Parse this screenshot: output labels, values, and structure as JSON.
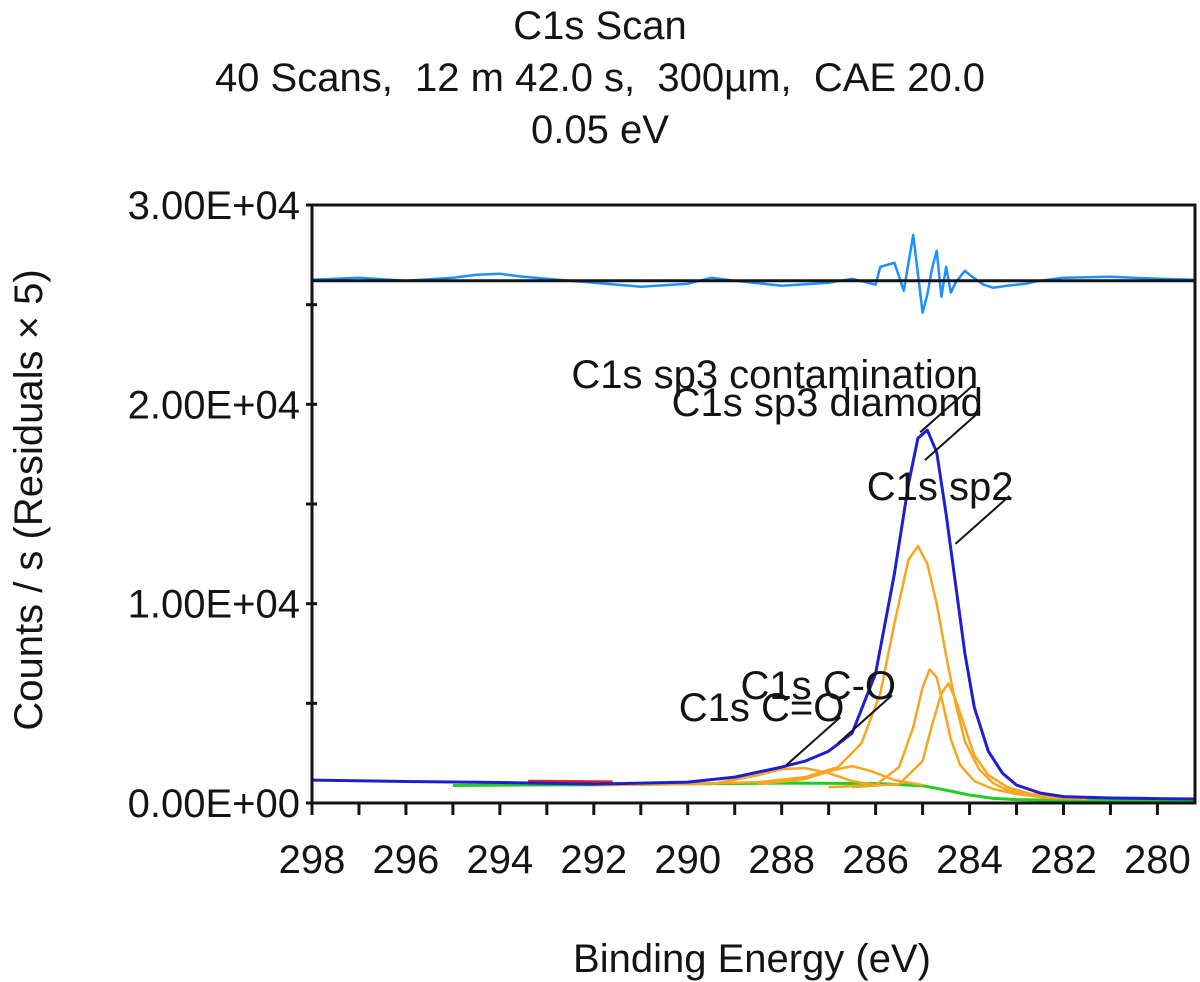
{
  "title": {
    "line1": "C1s Scan",
    "line2": "40 Scans,  12 m 42.0 s,  300µm,  CAE 20.0",
    "line3": "0.05 eV"
  },
  "chart_data": {
    "type": "line",
    "title": "C1s Scan",
    "subtitle": "40 Scans,  12 m 42.0 s,  300µm,  CAE 20.0 / 0.05 eV",
    "xlabel": "Binding Energy (eV)",
    "ylabel": "Counts / s  (Residuals × 5)",
    "xlim": [
      298,
      279.2
    ],
    "x_reversed": true,
    "ylim": [
      0,
      30000
    ],
    "yticks": [
      0,
      10000,
      20000,
      30000
    ],
    "ytick_labels": [
      "0.00E+00",
      "1.00E+04",
      "2.00E+04",
      "3.00E+04"
    ],
    "xticks": [
      298,
      296,
      294,
      292,
      290,
      288,
      286,
      284,
      282,
      280
    ],
    "xtick_labels": [
      "298",
      "296",
      "294",
      "292",
      "290",
      "288",
      "286",
      "284",
      "282",
      "280"
    ],
    "grid": false,
    "residual_baseline": 26200,
    "colors": {
      "envelope": "#1f1fd0",
      "components": "#f5a623",
      "background": "#22cc22",
      "background_region": "#dd2222",
      "residuals": "#1e90ff",
      "frame": "#141414"
    },
    "series": [
      {
        "role": "envelope",
        "x": [
          298,
          296,
          294,
          292,
          290,
          289,
          288,
          287.5,
          287,
          286.5,
          286,
          285.6,
          285.3,
          285.1,
          284.9,
          284.7,
          284.5,
          284.3,
          284.1,
          283.9,
          283.6,
          283.3,
          283,
          282.5,
          282,
          281,
          280,
          279.2
        ],
        "y": [
          1150,
          1080,
          1030,
          950,
          1050,
          1300,
          1800,
          2100,
          2600,
          3500,
          6500,
          11500,
          16000,
          18300,
          18700,
          17600,
          14500,
          11000,
          7500,
          4800,
          2600,
          1500,
          900,
          500,
          320,
          250,
          220,
          200
        ]
      },
      {
        "role": "component",
        "x": [
          292,
          290,
          288.5,
          287.5,
          286.8,
          286.3,
          285.9,
          285.6,
          285.3,
          285.1,
          284.9,
          284.7,
          284.5,
          284.3,
          284.1,
          283.8,
          283.5,
          283.2,
          282.8,
          282.3,
          281.5
        ],
        "y": [
          900,
          950,
          1050,
          1300,
          1800,
          3000,
          5500,
          9000,
          12200,
          12900,
          12000,
          10000,
          7400,
          5000,
          3100,
          1700,
          1000,
          650,
          420,
          250,
          200
        ]
      },
      {
        "role": "component",
        "x": [
          287,
          286,
          285.5,
          285.2,
          285,
          284.85,
          284.7,
          284.55,
          284.4,
          284.2,
          283.9,
          283.5,
          283,
          282.3
        ],
        "y": [
          800,
          900,
          1800,
          3800,
          5800,
          6700,
          6300,
          4800,
          3200,
          1900,
          1100,
          700,
          450,
          250
        ]
      },
      {
        "role": "component",
        "x": [
          286.5,
          285.5,
          285,
          284.8,
          284.6,
          284.45,
          284.3,
          284.1,
          283.9,
          283.6,
          283.2,
          282.7,
          282
        ],
        "y": [
          800,
          950,
          2100,
          3900,
          5500,
          6000,
          5200,
          3800,
          2400,
          1400,
          800,
          450,
          250
        ]
      },
      {
        "role": "component",
        "x": [
          289.5,
          288.5,
          288,
          287.5,
          287,
          286.5,
          286
        ],
        "y": [
          950,
          1400,
          1700,
          1750,
          1500,
          1100,
          900
        ]
      },
      {
        "role": "component",
        "x": [
          288.5,
          287.5,
          286.9,
          286.5,
          286.1,
          285.6,
          285
        ],
        "y": [
          950,
          1200,
          1650,
          1850,
          1600,
          1150,
          900
        ]
      },
      {
        "role": "background",
        "x": [
          295,
          292,
          290,
          288,
          286,
          285,
          284.5,
          284,
          283.5,
          283,
          282.5,
          282,
          281,
          280,
          279.2
        ],
        "y": [
          880,
          920,
          960,
          1000,
          980,
          870,
          640,
          400,
          230,
          170,
          150,
          130,
          120,
          110,
          100
        ]
      },
      {
        "role": "background_region",
        "x": [
          293.4,
          291.6
        ],
        "y": [
          1090,
          1060
        ]
      }
    ],
    "residuals": {
      "x": [
        298,
        297,
        296,
        295,
        294.5,
        294,
        293.5,
        293,
        292,
        291,
        290,
        289.5,
        289,
        288,
        287,
        286.5,
        286,
        285.9,
        285.6,
        285.4,
        285.2,
        285,
        284.9,
        284.8,
        284.7,
        284.6,
        284.5,
        284.4,
        284.3,
        284.1,
        284,
        283.7,
        283.5,
        283.2,
        282.8,
        282.5,
        282,
        281,
        280,
        279.2
      ],
      "y": [
        26250,
        26350,
        26200,
        26350,
        26500,
        26550,
        26400,
        26300,
        26100,
        25900,
        26050,
        26350,
        26200,
        25950,
        26100,
        26300,
        26000,
        26900,
        27100,
        25700,
        28500,
        24600,
        25500,
        26800,
        27700,
        25400,
        26900,
        25600,
        26100,
        26700,
        26500,
        26000,
        25850,
        25950,
        26050,
        26200,
        26350,
        26400,
        26300,
        26250
      ]
    },
    "annotations": [
      {
        "text": "C1s sp3 contamination",
        "x": 285.05,
        "y": 18600
      },
      {
        "text": "C1s sp3 diamond",
        "x": 284.95,
        "y": 17200
      },
      {
        "text": "C1s  sp2",
        "x": 284.3,
        "y": 13000
      },
      {
        "text": "C1s C-O",
        "x": 286.8,
        "y": 3000
      },
      {
        "text": "C1s C=O",
        "x": 287.9,
        "y": 1900
      }
    ]
  }
}
